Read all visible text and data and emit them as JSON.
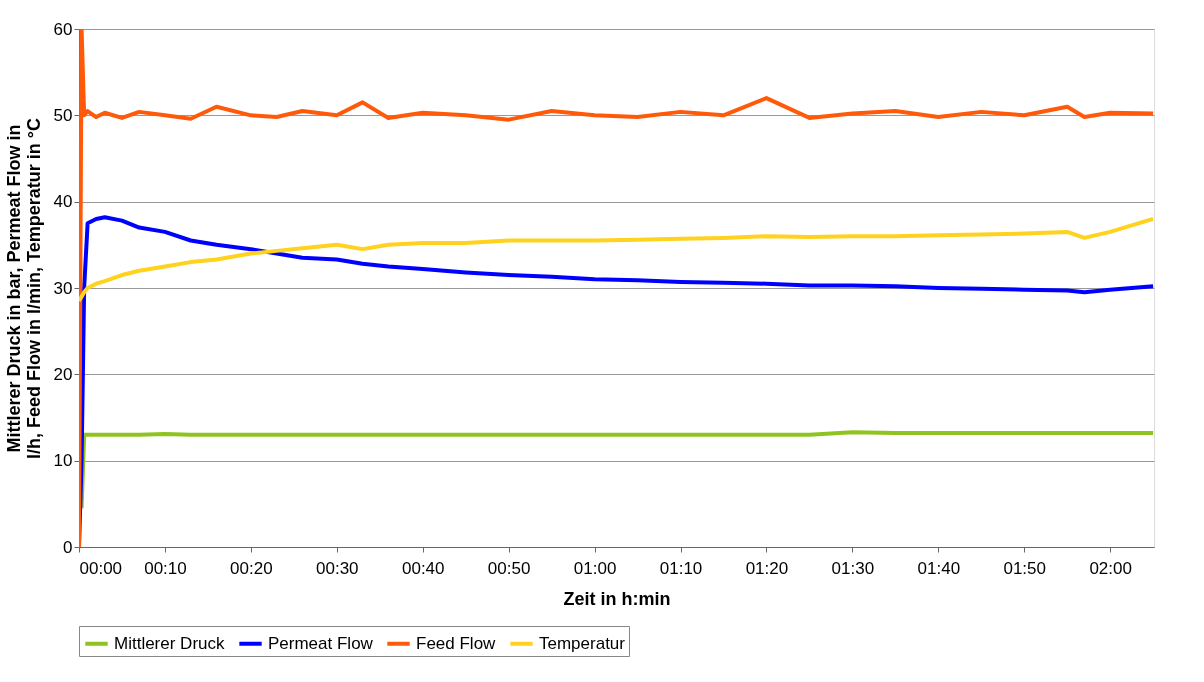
{
  "chart_data": {
    "type": "line",
    "xlabel": "Zeit in h:min",
    "ylabel": "Mittlerer Druck in bar, Permeat Flow in l/h, Feed Flow in l/min, Temperatur in °C",
    "x": [
      0,
      0.005,
      0.01,
      0.0167,
      0.0333,
      0.05,
      0.0833,
      0.1167,
      0.1667,
      0.2167,
      0.2667,
      0.3333,
      0.3833,
      0.4333,
      0.5,
      0.55,
      0.6,
      0.6667,
      0.75,
      0.8333,
      0.9167,
      1,
      1.0833,
      1.1667,
      1.25,
      1.3333,
      1.4167,
      1.5,
      1.5833,
      1.6667,
      1.75,
      1.8333,
      1.9167,
      1.95,
      2,
      2.0833
    ],
    "xlim": [
      0,
      2.085
    ],
    "xticks": [
      {
        "value": 0,
        "label": "00:00"
      },
      {
        "value": 0.1667,
        "label": "00:10"
      },
      {
        "value": 0.3333,
        "label": "00:20"
      },
      {
        "value": 0.5,
        "label": "00:30"
      },
      {
        "value": 0.6667,
        "label": "00:40"
      },
      {
        "value": 0.8333,
        "label": "00:50"
      },
      {
        "value": 1,
        "label": "01:00"
      },
      {
        "value": 1.1667,
        "label": "01:10"
      },
      {
        "value": 1.3333,
        "label": "01:20"
      },
      {
        "value": 1.5,
        "label": "01:30"
      },
      {
        "value": 1.6667,
        "label": "01:40"
      },
      {
        "value": 1.8333,
        "label": "01:50"
      },
      {
        "value": 2,
        "label": "02:00"
      }
    ],
    "ylim": [
      0,
      60
    ],
    "yticks": [
      0,
      10,
      20,
      30,
      40,
      50,
      60
    ],
    "grid": "y",
    "legend": "bottom",
    "series": [
      {
        "name": "Mittlerer Druck",
        "color": "#8fc31f",
        "values": [
          null,
          4.5,
          13,
          13,
          13,
          13,
          13,
          13,
          13.1,
          13,
          13,
          13,
          13,
          13,
          13,
          13,
          13,
          13,
          13,
          13,
          13,
          13,
          13,
          13,
          13,
          13,
          13,
          13.3,
          13.2,
          13.2,
          13.2,
          13.2,
          13.2,
          13.2,
          13.2,
          13.2
        ]
      },
      {
        "name": "Permeat Flow",
        "color": "#0000ff",
        "values": [
          0,
          10,
          30,
          37.5,
          38,
          38.2,
          37.8,
          37,
          36.5,
          35.5,
          35,
          34.5,
          34,
          33.5,
          33.3,
          32.8,
          32.5,
          32.2,
          31.8,
          31.5,
          31.3,
          31,
          30.9,
          30.7,
          30.6,
          30.5,
          30.3,
          30.3,
          30.2,
          30,
          29.9,
          29.8,
          29.7,
          29.5,
          29.8,
          30.2
        ]
      },
      {
        "name": "Feed Flow",
        "color": "#ff5a0a",
        "values": [
          0,
          60,
          50,
          50.5,
          49.8,
          50.3,
          49.7,
          50.4,
          50,
          49.6,
          51,
          50,
          49.8,
          50.5,
          50,
          51.5,
          49.7,
          50.3,
          50,
          49.5,
          50.5,
          50,
          49.8,
          50.4,
          50,
          52,
          49.7,
          50.2,
          50.5,
          49.8,
          50.4,
          50,
          51,
          49.8,
          50.3,
          50.2
        ]
      },
      {
        "name": "Temperatur",
        "color": "#ffd21e",
        "values": [
          28.5,
          29,
          29.5,
          30,
          30.5,
          30.8,
          31.5,
          32,
          32.5,
          33,
          33.3,
          34,
          34.3,
          34.6,
          35,
          34.5,
          35,
          35.2,
          35.2,
          35.5,
          35.5,
          35.5,
          35.6,
          35.7,
          35.8,
          36,
          35.9,
          36,
          36,
          36.1,
          36.2,
          36.3,
          36.5,
          35.8,
          36.5,
          38
        ]
      }
    ]
  }
}
